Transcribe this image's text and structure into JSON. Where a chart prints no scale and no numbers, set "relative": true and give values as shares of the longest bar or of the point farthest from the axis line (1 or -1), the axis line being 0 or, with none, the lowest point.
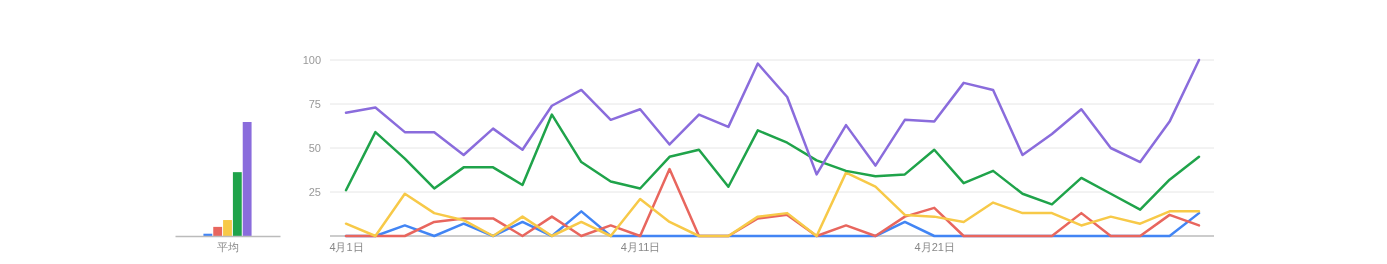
{
  "chart_data": [
    {
      "type": "bar",
      "relative": true,
      "categories": [
        "平均"
      ],
      "series": [
        {
          "color": "#4285f4",
          "values": [
            0.02
          ]
        },
        {
          "color": "#e8665e",
          "values": [
            0.08
          ]
        },
        {
          "color": "#f7c948",
          "values": [
            0.14
          ]
        },
        {
          "color": "#1fa34a",
          "values": [
            0.56
          ]
        },
        {
          "color": "#8a6cdc",
          "values": [
            1
          ]
        }
      ]
    },
    {
      "type": "line",
      "categories": [
        "4月1日",
        null,
        null,
        null,
        null,
        null,
        null,
        null,
        null,
        null,
        "4月11日",
        null,
        null,
        null,
        null,
        null,
        null,
        null,
        null,
        null,
        "4月21日",
        null,
        null,
        null,
        null,
        null,
        null,
        null,
        null,
        null
      ],
      "ylim": [
        0,
        100
      ],
      "yticks": [
        25,
        50,
        75,
        100
      ],
      "grid": "y",
      "series": [
        {
          "color": "#4285f4",
          "values": [
            0,
            0,
            6,
            0,
            7,
            0,
            8,
            0,
            14,
            0,
            0,
            0,
            0,
            0,
            0,
            0,
            0,
            0,
            0,
            8,
            0,
            0,
            0,
            0,
            0,
            0,
            0,
            0,
            0,
            13
          ]
        },
        {
          "color": "#e8665e",
          "values": [
            0,
            0,
            0,
            8,
            10,
            10,
            0,
            11,
            0,
            6,
            0,
            38,
            0,
            0,
            10,
            12,
            0,
            6,
            0,
            11,
            16,
            0,
            0,
            0,
            0,
            13,
            0,
            0,
            12,
            6
          ]
        },
        {
          "color": "#f7c948",
          "values": [
            7,
            0,
            24,
            13,
            9,
            0,
            11,
            0,
            8,
            0,
            21,
            8,
            0,
            0,
            11,
            13,
            0,
            36,
            28,
            12,
            11,
            8,
            19,
            13,
            13,
            6,
            11,
            7,
            14,
            14
          ]
        },
        {
          "color": "#1fa34a",
          "values": [
            26,
            59,
            44,
            27,
            39,
            39,
            29,
            69,
            42,
            31,
            27,
            45,
            49,
            28,
            60,
            53,
            43,
            37,
            34,
            35,
            49,
            30,
            37,
            24,
            18,
            33,
            24,
            15,
            32,
            45
          ]
        },
        {
          "color": "#8a6cdc",
          "values": [
            70,
            73,
            59,
            59,
            46,
            61,
            49,
            74,
            83,
            66,
            72,
            52,
            69,
            62,
            98,
            79,
            35,
            63,
            40,
            66,
            65,
            87,
            83,
            46,
            58,
            72,
            50,
            42,
            65,
            100
          ]
        }
      ]
    }
  ]
}
